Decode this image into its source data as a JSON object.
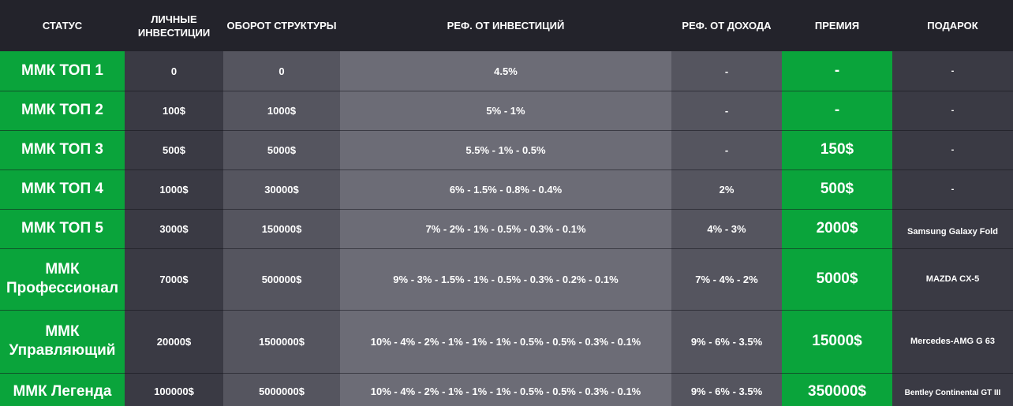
{
  "headers": [
    "СТАТУС",
    "ЛИЧНЫЕ ИНВЕСТИЦИИ",
    "ОБОРОТ СТРУКТУРЫ",
    "РЕФ. ОТ ИНВЕСТИЦИЙ",
    "РЕФ. ОТ ДОХОДА",
    "ПРЕМИЯ",
    "ПОДАРОК"
  ],
  "rows": [
    {
      "status": "ММК ТОП 1",
      "personal": "0",
      "turnover": "0",
      "ref_invest": "4.5%",
      "ref_income": "-",
      "bonus": "-",
      "gift": "-"
    },
    {
      "status": "ММК ТОП 2",
      "personal": "100$",
      "turnover": "1000$",
      "ref_invest": "5% - 1%",
      "ref_income": "-",
      "bonus": "-",
      "gift": "-"
    },
    {
      "status": "ММК ТОП 3",
      "personal": "500$",
      "turnover": "5000$",
      "ref_invest": "5.5% - 1% - 0.5%",
      "ref_income": "-",
      "bonus": "150$",
      "gift": "-"
    },
    {
      "status": "ММК ТОП 4",
      "personal": "1000$",
      "turnover": "30000$",
      "ref_invest": "6% - 1.5% - 0.8% - 0.4%",
      "ref_income": "2%",
      "bonus": "500$",
      "gift": "-"
    },
    {
      "status": "ММК ТОП 5",
      "personal": "3000$",
      "turnover": "150000$",
      "ref_invest": "7% - 2% - 1% - 0.5% - 0.3% - 0.1%",
      "ref_income": "4% - 3%",
      "bonus": "2000$",
      "gift": "Samsung Galaxy Fold"
    },
    {
      "status": "ММК Профессионал",
      "personal": "7000$",
      "turnover": "500000$",
      "ref_invest": "9% - 3% - 1.5% - 1% - 0.5% - 0.3% - 0.2% - 0.1%",
      "ref_income": "7% - 4% - 2%",
      "bonus": "5000$",
      "gift": "MAZDA CX-5"
    },
    {
      "status": "ММК Управляющий",
      "personal": "20000$",
      "turnover": "1500000$",
      "ref_invest": "10% - 4% - 2% - 1% - 1% - 1% - 0.5% - 0.5% - 0.3% - 0.1%",
      "ref_income": "9% - 6% - 3.5%",
      "bonus": "15000$",
      "gift": "Mercedes-AMG G 63"
    },
    {
      "status": "ММК Легенда",
      "personal": "100000$",
      "turnover": "5000000$",
      "ref_invest": "10% - 4% - 2% - 1% - 1% - 1% - 0.5% - 0.5% - 0.3% - 0.1%",
      "ref_income": "9% - 6% - 3.5%",
      "bonus": "350000$",
      "gift": "Bentley Continental GT III"
    }
  ]
}
